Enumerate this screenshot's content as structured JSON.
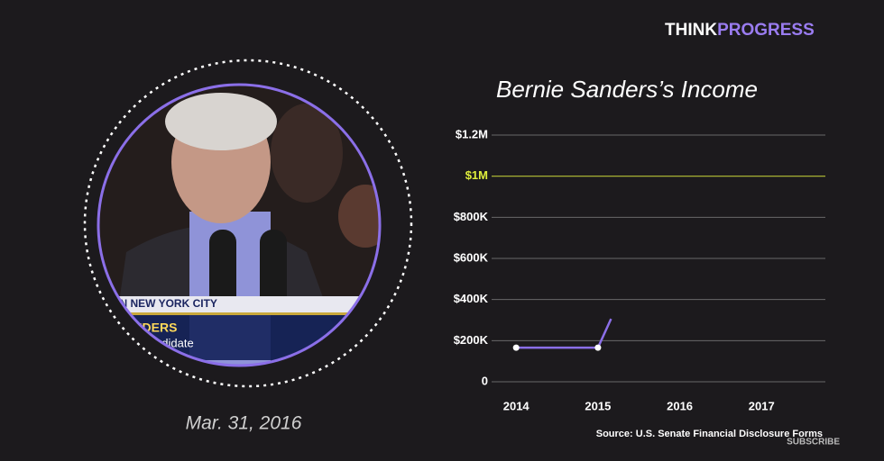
{
  "brand": {
    "first": "THINK",
    "second": "PROGRESS"
  },
  "video": {
    "date": "Mar. 31, 2016",
    "banner": "Y IN NEW YORK CITY",
    "name": "SANDERS",
    "role": "ntial Candidate"
  },
  "source": "Source: U.S. Senate Financial Disclosure Forms",
  "subscribe": "SUBSCRIBE",
  "chart_data": {
    "type": "line",
    "title": "Bernie Sanders’s Income",
    "x": [
      2014,
      2015,
      2015.16
    ],
    "series": [
      {
        "name": "Income",
        "color": "#8b6fe8",
        "values": [
          166000,
          166000,
          306000
        ]
      }
    ],
    "xlim": [
      2013.7,
      2017.78
    ],
    "xticks": [
      2014,
      2015,
      2016,
      2017
    ],
    "ylim": [
      0,
      1200000
    ],
    "yticks": [
      0,
      {
        "value": 200000,
        "label": "$200K"
      },
      {
        "value": 400000,
        "label": "$400K"
      },
      {
        "value": 600000,
        "label": "$600K"
      },
      {
        "value": 800000,
        "label": "$800K"
      },
      {
        "value": 1000000,
        "label": "$1M"
      },
      {
        "value": 1200000,
        "label": "$1.2M"
      }
    ],
    "reference_line": {
      "value": 1000000,
      "color": "#dfee3c"
    },
    "grid": true
  }
}
